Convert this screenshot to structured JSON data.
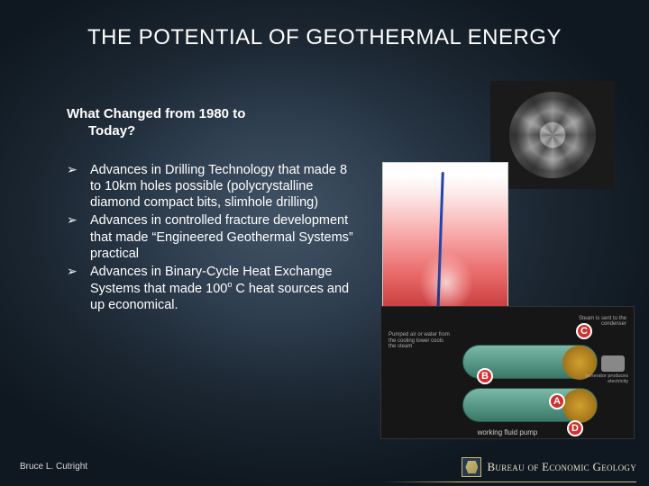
{
  "title": "THE POTENTIAL OF GEOTHERMAL ENERGY",
  "subtitle": {
    "line1": "What Changed from 1980 to",
    "line2": "Today?"
  },
  "bullets": [
    {
      "text": "Advances in Drilling Technology that made 8 to 10km holes possible (polycrystalline diamond compact bits, slimhole drilling)"
    },
    {
      "text": "Advances in controlled fracture development that made “Engineered Geothermal Systems” practical"
    },
    {
      "text_pre": "Advances in Binary-Cycle Heat Exchange Systems that made 100",
      "sup": "o",
      "text_post": " C heat sources and up economical."
    }
  ],
  "images": {
    "top_right": {
      "alt": "polycrystalline-diamond-drill-bit"
    },
    "mid_right": {
      "alt": "geothermal-wellbore-cross-section"
    },
    "bottom_right": {
      "alt": "binary-cycle-heat-exchanger-diagram",
      "badges": {
        "A": "A",
        "B": "B",
        "C": "C",
        "D": "D"
      },
      "caption": "working fluid pump",
      "text_tl": "Pumped air or water from the cooling tower cools the steam",
      "text_tr": "Steam is sent to the condenser",
      "text_gen": "generator produces electricity"
    }
  },
  "footer": {
    "author": "Bruce L. Cutright",
    "org_prefix": "Bureau of",
    "org_main": " Economic Geology"
  },
  "colors": {
    "bg_dark": "#0f1820",
    "bg_mid": "#2b3a4a",
    "text": "#ffffff",
    "footer_text": "#d8d8d8",
    "logo_gold": "#c8b878",
    "badge_red": "#d03030"
  },
  "fonts": {
    "title_size_pt": 18,
    "body_size_pt": 11,
    "footer_size_pt": 7.5
  }
}
